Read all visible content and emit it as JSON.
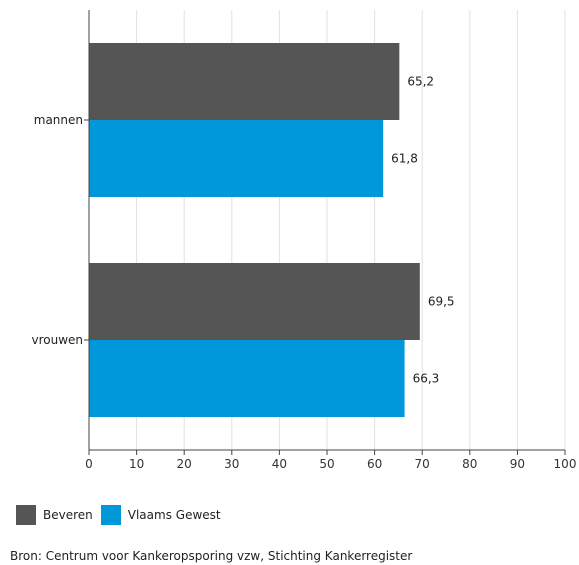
{
  "chart_data": {
    "type": "bar",
    "orientation": "horizontal",
    "categories": [
      "mannen",
      "vrouwen"
    ],
    "series": [
      {
        "name": "Beveren",
        "color": "#555555",
        "values": [
          65.2,
          69.5
        ],
        "labels": [
          "65,2",
          "69,5"
        ]
      },
      {
        "name": "Vlaams Gewest",
        "color": "#0097db",
        "values": [
          61.8,
          66.3
        ],
        "labels": [
          "61,8",
          "66,3"
        ]
      }
    ],
    "xlim": [
      0,
      100
    ],
    "x_ticks": [
      0,
      10,
      20,
      30,
      40,
      50,
      60,
      70,
      80,
      90,
      100
    ],
    "grid": true,
    "legend_placement": "bottom-left"
  },
  "source": "Bron: Centrum voor Kankeropsporing vzw, Stichting Kankerregister"
}
